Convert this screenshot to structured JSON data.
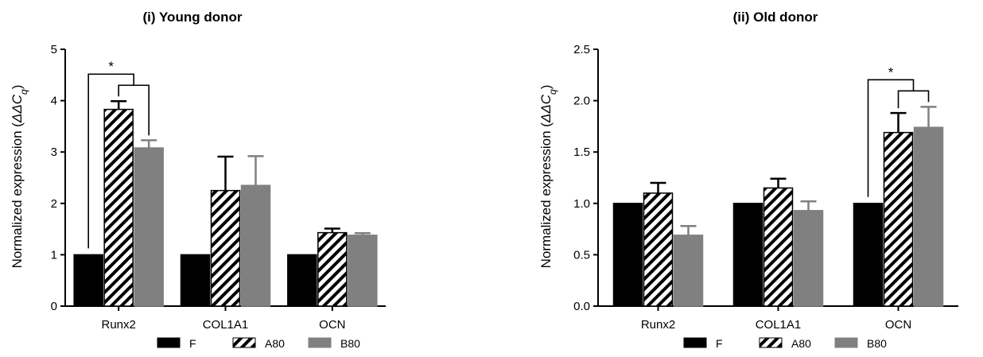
{
  "chart_data": [
    {
      "type": "bar",
      "title": "(i) Young donor",
      "ylabel_main": "Normalized expression (",
      "ylabel_math": "ΔΔC",
      "ylabel_sub": "q",
      "ylabel_close": ")",
      "categories": [
        "Runx2",
        "COL1A1",
        "OCN"
      ],
      "ylim": [
        0,
        5
      ],
      "yticks": [
        "0",
        "1",
        "2",
        "3",
        "4",
        "5"
      ],
      "series": [
        {
          "name": "F",
          "values": [
            1.0,
            1.0,
            1.0
          ],
          "errors": [
            0,
            0,
            0
          ],
          "fill": "black"
        },
        {
          "name": "A80",
          "values": [
            3.83,
            2.25,
            1.43
          ],
          "errors": [
            0.16,
            0.66,
            0.08
          ],
          "fill": "hatch"
        },
        {
          "name": "B80",
          "values": [
            3.08,
            2.35,
            1.38
          ],
          "errors": [
            0.15,
            0.57,
            0.04
          ],
          "fill": "gray"
        }
      ],
      "significance": [
        {
          "label": "*",
          "category": "Runx2",
          "from_series": "F",
          "to_series": [
            "A80",
            "B80"
          ]
        }
      ]
    },
    {
      "type": "bar",
      "title": "(ii) Old donor",
      "ylabel_main": "Normalized expression (",
      "ylabel_math": "ΔΔC",
      "ylabel_sub": "q",
      "ylabel_close": ")",
      "categories": [
        "Runx2",
        "COL1A1",
        "OCN"
      ],
      "ylim": [
        0,
        2.5
      ],
      "yticks": [
        "0.0",
        "0.5",
        "1.0",
        "1.5",
        "2.0",
        "2.5"
      ],
      "series": [
        {
          "name": "F",
          "values": [
            1.0,
            1.0,
            1.0
          ],
          "errors": [
            0,
            0,
            0
          ],
          "fill": "black"
        },
        {
          "name": "A80",
          "values": [
            1.1,
            1.15,
            1.69
          ],
          "errors": [
            0.1,
            0.09,
            0.19
          ],
          "fill": "hatch"
        },
        {
          "name": "B80",
          "values": [
            0.69,
            0.93,
            1.74
          ],
          "errors": [
            0.09,
            0.09,
            0.2
          ],
          "fill": "gray"
        }
      ],
      "significance": [
        {
          "label": "*",
          "category": "OCN",
          "from_series": "F",
          "to_series": [
            "A80",
            "B80"
          ]
        }
      ]
    }
  ],
  "colors": {
    "F": "#000000",
    "B80": "#808080",
    "hatch": "#000000"
  }
}
